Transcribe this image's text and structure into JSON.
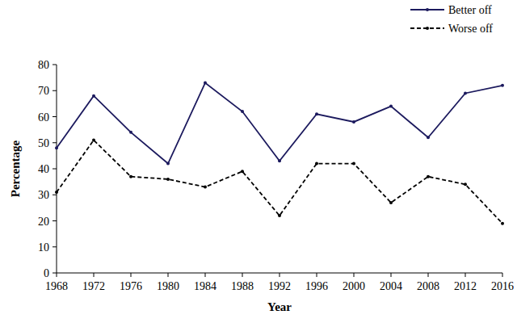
{
  "chart_data": {
    "type": "line",
    "x_label": "Year",
    "y_label": "Percentage",
    "x": [
      1968,
      1972,
      1976,
      1980,
      1984,
      1988,
      1992,
      1996,
      2000,
      2004,
      2008,
      2012,
      2016
    ],
    "xlim": [
      1968,
      2016
    ],
    "xticks": [
      1968,
      1972,
      1976,
      1980,
      1984,
      1988,
      1992,
      1996,
      2000,
      2004,
      2008,
      2012,
      2016
    ],
    "ylim": [
      0,
      80
    ],
    "yticks": [
      0,
      10,
      20,
      30,
      40,
      50,
      60,
      70,
      80
    ],
    "grid": false,
    "legend": "top-right",
    "series": [
      {
        "name": "Better off",
        "color": "#1c1a5e",
        "line_style": "solid",
        "marker": "circle",
        "values": [
          48,
          68,
          54,
          42,
          73,
          62,
          43,
          61,
          58,
          64,
          52,
          69,
          72
        ]
      },
      {
        "name": "Worse off",
        "color": "#000000",
        "line_style": "dashed",
        "marker": "circle",
        "values": [
          31,
          51,
          37,
          36,
          33,
          39,
          22,
          42,
          42,
          27,
          37,
          34,
          19
        ]
      }
    ]
  }
}
